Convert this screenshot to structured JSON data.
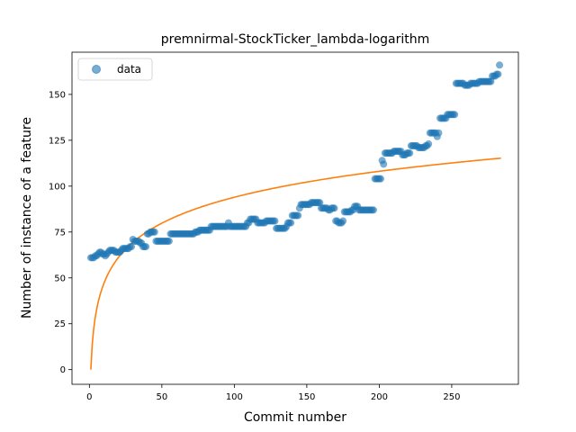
{
  "chart_data": {
    "type": "scatter",
    "title": "premnirmal-StockTicker_lambda-logarithm",
    "xlabel": "Commit number",
    "ylabel": "Number of instance of a feature",
    "xlim": [
      -12,
      296
    ],
    "ylim": [
      -8,
      173
    ],
    "xticks": [
      0,
      50,
      100,
      150,
      200,
      250
    ],
    "yticks": [
      0,
      25,
      50,
      75,
      100,
      125,
      150
    ],
    "grid": false,
    "legend": {
      "position": "top-left",
      "entries": [
        "data"
      ]
    },
    "colors": {
      "data": "#1f77b4",
      "fit": "#ff7f0e"
    },
    "series": [
      {
        "name": "data",
        "kind": "points",
        "points": [
          [
            1,
            61
          ],
          [
            2,
            61
          ],
          [
            3,
            61
          ],
          [
            4,
            62
          ],
          [
            5,
            62
          ],
          [
            6,
            63
          ],
          [
            7,
            64
          ],
          [
            8,
            64
          ],
          [
            9,
            63
          ],
          [
            10,
            63
          ],
          [
            11,
            62
          ],
          [
            12,
            63
          ],
          [
            13,
            64
          ],
          [
            14,
            65
          ],
          [
            15,
            65
          ],
          [
            16,
            65
          ],
          [
            17,
            65
          ],
          [
            18,
            64
          ],
          [
            19,
            64
          ],
          [
            20,
            64
          ],
          [
            21,
            64
          ],
          [
            22,
            65
          ],
          [
            23,
            66
          ],
          [
            24,
            66
          ],
          [
            25,
            66
          ],
          [
            26,
            66
          ],
          [
            27,
            66
          ],
          [
            28,
            67
          ],
          [
            29,
            67
          ],
          [
            30,
            71
          ],
          [
            31,
            70
          ],
          [
            32,
            70
          ],
          [
            33,
            70
          ],
          [
            34,
            70
          ],
          [
            35,
            69
          ],
          [
            36,
            69
          ],
          [
            37,
            67
          ],
          [
            38,
            67
          ],
          [
            39,
            67
          ],
          [
            40,
            74
          ],
          [
            41,
            74
          ],
          [
            42,
            75
          ],
          [
            43,
            75
          ],
          [
            44,
            75
          ],
          [
            45,
            75
          ],
          [
            46,
            70
          ],
          [
            47,
            70
          ],
          [
            48,
            70
          ],
          [
            49,
            70
          ],
          [
            50,
            70
          ],
          [
            51,
            70
          ],
          [
            52,
            70
          ],
          [
            53,
            70
          ],
          [
            54,
            70
          ],
          [
            55,
            70
          ],
          [
            56,
            74
          ],
          [
            57,
            74
          ],
          [
            58,
            74
          ],
          [
            59,
            74
          ],
          [
            60,
            74
          ],
          [
            61,
            74
          ],
          [
            62,
            74
          ],
          [
            63,
            74
          ],
          [
            64,
            74
          ],
          [
            65,
            74
          ],
          [
            66,
            74
          ],
          [
            67,
            74
          ],
          [
            68,
            74
          ],
          [
            69,
            74
          ],
          [
            70,
            74
          ],
          [
            71,
            74
          ],
          [
            72,
            74
          ],
          [
            73,
            75
          ],
          [
            74,
            75
          ],
          [
            75,
            75
          ],
          [
            76,
            76
          ],
          [
            77,
            76
          ],
          [
            78,
            76
          ],
          [
            79,
            76
          ],
          [
            80,
            76
          ],
          [
            81,
            76
          ],
          [
            82,
            76
          ],
          [
            83,
            76
          ],
          [
            84,
            78
          ],
          [
            85,
            78
          ],
          [
            86,
            78
          ],
          [
            87,
            78
          ],
          [
            88,
            78
          ],
          [
            89,
            78
          ],
          [
            90,
            78
          ],
          [
            91,
            78
          ],
          [
            92,
            78
          ],
          [
            93,
            78
          ],
          [
            94,
            78
          ],
          [
            95,
            78
          ],
          [
            96,
            80
          ],
          [
            97,
            78
          ],
          [
            98,
            78
          ],
          [
            99,
            78
          ],
          [
            100,
            78
          ],
          [
            101,
            78
          ],
          [
            102,
            78
          ],
          [
            103,
            78
          ],
          [
            104,
            78
          ],
          [
            105,
            78
          ],
          [
            106,
            78
          ],
          [
            107,
            78
          ],
          [
            108,
            78
          ],
          [
            109,
            80
          ],
          [
            110,
            80
          ],
          [
            111,
            82
          ],
          [
            112,
            82
          ],
          [
            113,
            82
          ],
          [
            114,
            82
          ],
          [
            115,
            82
          ],
          [
            116,
            80
          ],
          [
            117,
            80
          ],
          [
            118,
            80
          ],
          [
            119,
            80
          ],
          [
            120,
            80
          ],
          [
            121,
            80
          ],
          [
            122,
            81
          ],
          [
            123,
            81
          ],
          [
            124,
            81
          ],
          [
            125,
            81
          ],
          [
            126,
            81
          ],
          [
            127,
            81
          ],
          [
            128,
            81
          ],
          [
            129,
            77
          ],
          [
            130,
            77
          ],
          [
            131,
            77
          ],
          [
            132,
            77
          ],
          [
            133,
            77
          ],
          [
            134,
            77
          ],
          [
            135,
            77
          ],
          [
            136,
            78
          ],
          [
            137,
            80
          ],
          [
            138,
            80
          ],
          [
            139,
            80
          ],
          [
            140,
            84
          ],
          [
            141,
            84
          ],
          [
            142,
            84
          ],
          [
            143,
            84
          ],
          [
            144,
            84
          ],
          [
            145,
            88
          ],
          [
            146,
            90
          ],
          [
            147,
            90
          ],
          [
            148,
            90
          ],
          [
            149,
            90
          ],
          [
            150,
            90
          ],
          [
            151,
            90
          ],
          [
            152,
            90
          ],
          [
            153,
            91
          ],
          [
            154,
            91
          ],
          [
            155,
            91
          ],
          [
            156,
            91
          ],
          [
            157,
            91
          ],
          [
            158,
            91
          ],
          [
            159,
            91
          ],
          [
            160,
            88
          ],
          [
            161,
            88
          ],
          [
            162,
            88
          ],
          [
            163,
            88
          ],
          [
            164,
            88
          ],
          [
            165,
            87
          ],
          [
            166,
            87
          ],
          [
            167,
            88
          ],
          [
            168,
            88
          ],
          [
            169,
            88
          ],
          [
            170,
            81
          ],
          [
            171,
            81
          ],
          [
            172,
            80
          ],
          [
            173,
            80
          ],
          [
            174,
            80
          ],
          [
            175,
            81
          ],
          [
            176,
            86
          ],
          [
            177,
            86
          ],
          [
            178,
            86
          ],
          [
            179,
            86
          ],
          [
            180,
            86
          ],
          [
            181,
            87
          ],
          [
            182,
            87
          ],
          [
            183,
            89
          ],
          [
            184,
            89
          ],
          [
            185,
            89
          ],
          [
            186,
            87
          ],
          [
            187,
            87
          ],
          [
            188,
            87
          ],
          [
            189,
            87
          ],
          [
            190,
            87
          ],
          [
            191,
            87
          ],
          [
            192,
            87
          ],
          [
            193,
            87
          ],
          [
            194,
            87
          ],
          [
            195,
            87
          ],
          [
            196,
            87
          ],
          [
            197,
            104
          ],
          [
            198,
            104
          ],
          [
            199,
            104
          ],
          [
            200,
            104
          ],
          [
            201,
            104
          ],
          [
            202,
            114
          ],
          [
            203,
            112
          ],
          [
            204,
            118
          ],
          [
            205,
            118
          ],
          [
            206,
            118
          ],
          [
            207,
            118
          ],
          [
            208,
            118
          ],
          [
            209,
            118
          ],
          [
            210,
            119
          ],
          [
            211,
            119
          ],
          [
            212,
            119
          ],
          [
            213,
            119
          ],
          [
            214,
            119
          ],
          [
            215,
            119
          ],
          [
            216,
            117
          ],
          [
            217,
            117
          ],
          [
            218,
            117
          ],
          [
            219,
            118
          ],
          [
            220,
            118
          ],
          [
            221,
            118
          ],
          [
            222,
            122
          ],
          [
            223,
            122
          ],
          [
            224,
            122
          ],
          [
            225,
            122
          ],
          [
            226,
            122
          ],
          [
            227,
            121
          ],
          [
            228,
            121
          ],
          [
            229,
            121
          ],
          [
            230,
            121
          ],
          [
            231,
            121
          ],
          [
            232,
            122
          ],
          [
            233,
            122
          ],
          [
            234,
            123
          ],
          [
            235,
            129
          ],
          [
            236,
            129
          ],
          [
            237,
            129
          ],
          [
            238,
            129
          ],
          [
            239,
            129
          ],
          [
            240,
            127
          ],
          [
            241,
            129
          ],
          [
            242,
            137
          ],
          [
            243,
            137
          ],
          [
            244,
            137
          ],
          [
            245,
            137
          ],
          [
            246,
            137
          ],
          [
            247,
            139
          ],
          [
            248,
            139
          ],
          [
            249,
            139
          ],
          [
            250,
            139
          ],
          [
            251,
            139
          ],
          [
            252,
            139
          ],
          [
            253,
            156
          ],
          [
            254,
            156
          ],
          [
            255,
            156
          ],
          [
            256,
            156
          ],
          [
            257,
            156
          ],
          [
            258,
            156
          ],
          [
            259,
            155
          ],
          [
            260,
            155
          ],
          [
            261,
            155
          ],
          [
            262,
            155
          ],
          [
            263,
            156
          ],
          [
            264,
            156
          ],
          [
            265,
            156
          ],
          [
            266,
            156
          ],
          [
            267,
            156
          ],
          [
            268,
            156
          ],
          [
            269,
            157
          ],
          [
            270,
            157
          ],
          [
            271,
            157
          ],
          [
            272,
            157
          ],
          [
            273,
            157
          ],
          [
            274,
            157
          ],
          [
            275,
            157
          ],
          [
            276,
            157
          ],
          [
            277,
            157
          ],
          [
            278,
            160
          ],
          [
            279,
            160
          ],
          [
            280,
            160
          ],
          [
            281,
            161
          ],
          [
            282,
            161
          ],
          [
            283,
            166
          ]
        ]
      },
      {
        "kind": "line",
        "function": "y = 20.4 * ln(x)",
        "x_range": [
          1,
          284
        ],
        "samples": [
          [
            1,
            0
          ],
          [
            2,
            14.1
          ],
          [
            5,
            32.8
          ],
          [
            10,
            47
          ],
          [
            20,
            61.1
          ],
          [
            40,
            75.2
          ],
          [
            60,
            83.5
          ],
          [
            80,
            89.4
          ],
          [
            100,
            94
          ],
          [
            150,
            102.3
          ],
          [
            200,
            108.2
          ],
          [
            250,
            112.8
          ],
          [
            284,
            115.3
          ]
        ]
      }
    ]
  }
}
